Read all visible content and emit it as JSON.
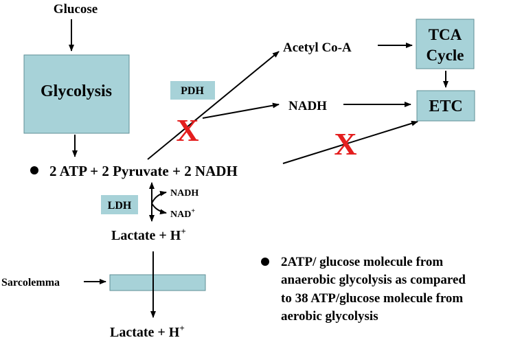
{
  "nodes": {
    "glucose": "Glucose",
    "glycolysis": "Glycolysis",
    "pdh": "PDH",
    "acetyl_coa": "Acetyl Co-A",
    "tca_line1": "TCA",
    "tca_line2": "Cycle",
    "nadh_mid": "NADH",
    "etc": "ETC",
    "products": "2 ATP + 2 Pyruvate + 2 NADH",
    "ldh": "LDH",
    "nadh_small": "NADH",
    "nad_small": "NAD",
    "nad_sup": "+",
    "lactate_top": "Lactate + H",
    "lactate_top_sup": "+",
    "sarcolemma": "Sarcolemma",
    "lactate_bottom": "Lactate + H",
    "lactate_bottom_sup": "+"
  },
  "blocked_marks": [
    "X",
    "X"
  ],
  "note": {
    "line1": "2ATP/ glucose molecule from",
    "line2": "anaerobic glycolysis as compared",
    "line3": "to 38 ATP/glucose molecule from",
    "line4": "aerobic glycolysis"
  },
  "colors": {
    "box_fill": "#a7d2d8",
    "blocked_x": "#e41e1e"
  }
}
